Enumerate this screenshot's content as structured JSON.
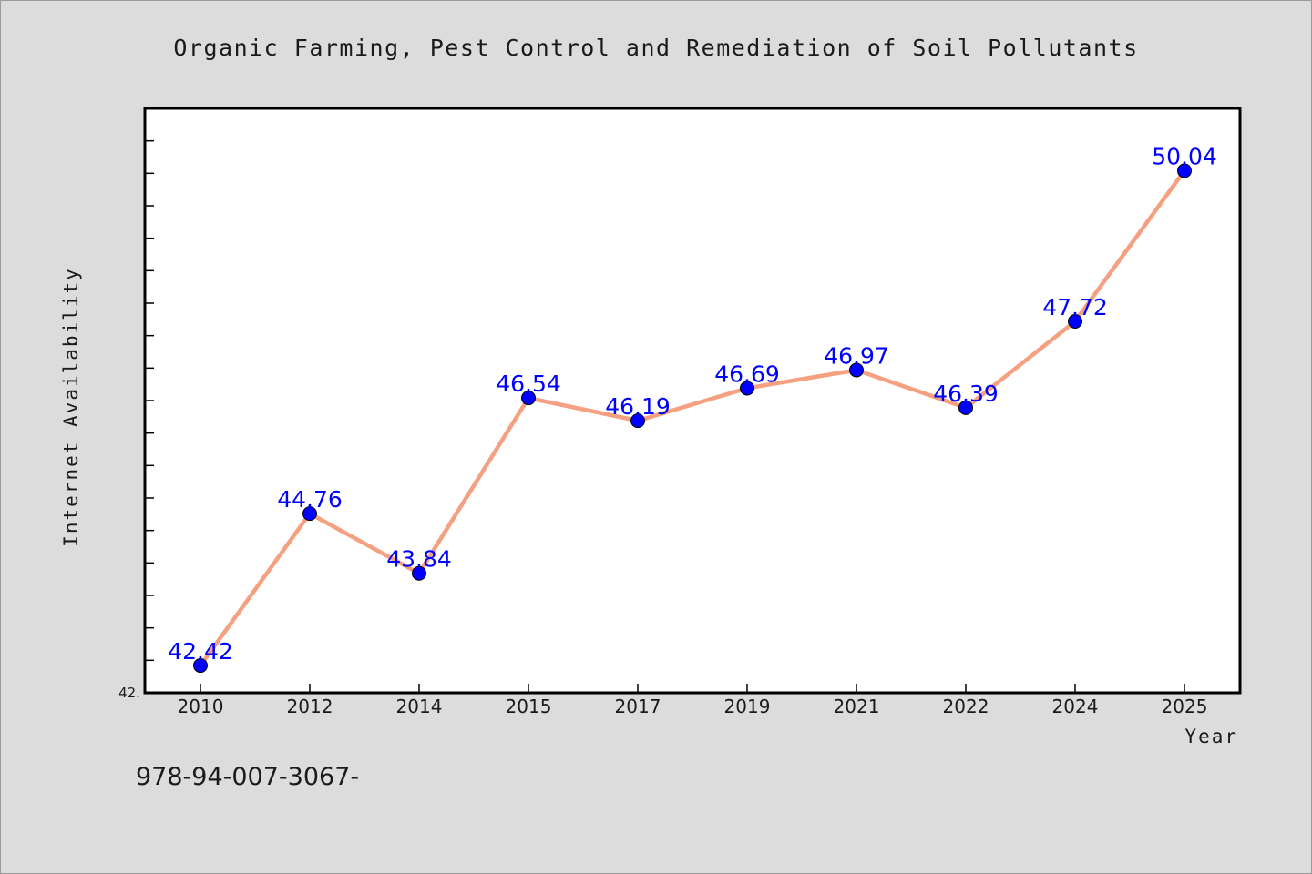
{
  "chart_data": {
    "type": "line",
    "title": "Organic Farming, Pest Control and Remediation of Soil Pollutants",
    "xlabel": "Year",
    "ylabel": "Internet Availability",
    "categories": [
      "2010",
      "2012",
      "2014",
      "2015",
      "2017",
      "2019",
      "2021",
      "2022",
      "2024",
      "2025"
    ],
    "series": [
      {
        "values": [
          42.42,
          44.76,
          43.84,
          46.54,
          46.19,
          46.69,
          46.97,
          46.39,
          47.72,
          50.04
        ],
        "data_labels": [
          "42.42",
          "44.76",
          "43.84",
          "46.54",
          "46.19",
          "46.69",
          "46.97",
          "46.39",
          "47.72",
          "50.04"
        ]
      }
    ],
    "ylim": [
      42.0,
      51.0
    ],
    "yticklabels": [
      "42."
    ],
    "grid": false,
    "legend": "none",
    "line_color": "#f4a081",
    "marker_color": "#0000ff",
    "label_color": "#0000ff",
    "plot_background": "#ffffff",
    "figure_background": "#dcdcdc"
  },
  "footer": {
    "text": "978-94-007-3067-"
  }
}
